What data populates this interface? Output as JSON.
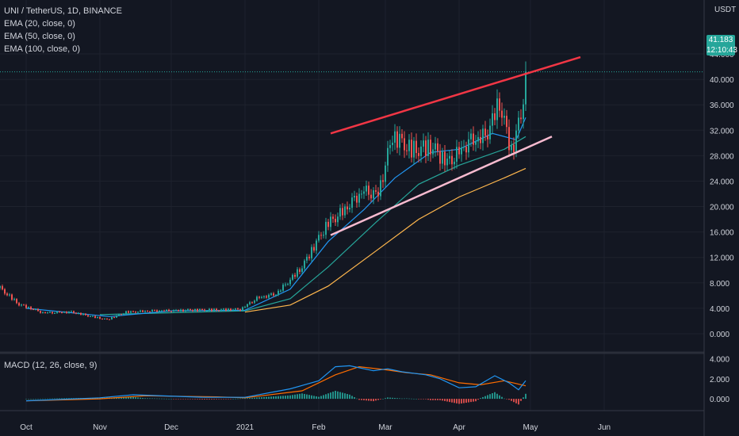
{
  "header": {
    "symbol_line": "UNI / TetherUS, 1D, BINANCE",
    "indicators": [
      "EMA (20, close, 0)",
      "EMA (50, close, 0)",
      "EMA (100, close, 0)"
    ],
    "macd_label": "MACD (12, 26, close, 9)"
  },
  "price_scale": {
    "currency": "USDT",
    "ticks": [
      "44.000",
      "40.000",
      "36.000",
      "32.000",
      "28.000",
      "24.000",
      "20.000",
      "16.000",
      "12.000",
      "8.000",
      "4.000",
      "0.000"
    ],
    "tick_values": [
      44,
      40,
      36,
      32,
      28,
      24,
      20,
      16,
      12,
      8,
      4,
      0
    ]
  },
  "last_price": {
    "value": "41.183",
    "countdown": "12:10:43"
  },
  "macd_scale": {
    "ticks": [
      "4.000",
      "2.000",
      "0.000"
    ],
    "tick_values": [
      4,
      2,
      0
    ]
  },
  "time_axis": {
    "labels": [
      "Oct",
      "Nov",
      "Dec",
      "2021",
      "Feb",
      "Mar",
      "Apr",
      "May",
      "Jun"
    ]
  },
  "colors": {
    "up": "#26a69a",
    "down": "#ef5350",
    "ema20": "#2196f3",
    "ema50": "#26a69a",
    "ema100": "#ffb74d",
    "macd": "#2196f3",
    "signal": "#ff6d00",
    "upper_line": "#f23645",
    "lower_line": "#f8bbd0"
  },
  "chart_data": {
    "type": "candlestick",
    "symbol": "UNI / TetherUS",
    "interval": "1D",
    "ylim": [
      -3,
      45
    ],
    "price_anchors": [
      [
        "2020-09-20",
        7.2
      ],
      [
        "2020-09-28",
        4.6
      ],
      [
        "2020-10-08",
        3.3
      ],
      [
        "2020-10-20",
        3.4
      ],
      [
        "2020-11-04",
        2.2
      ],
      [
        "2020-11-12",
        3.4
      ],
      [
        "2020-11-25",
        3.6
      ],
      [
        "2020-12-10",
        3.7
      ],
      [
        "2020-12-30",
        3.8
      ],
      [
        "2021-01-06",
        5.6
      ],
      [
        "2021-01-14",
        6.2
      ],
      [
        "2021-01-25",
        10.5
      ],
      [
        "2021-02-05",
        17.5
      ],
      [
        "2021-02-12",
        19.5
      ],
      [
        "2021-02-20",
        22.5
      ],
      [
        "2021-02-26",
        22.0
      ],
      [
        "2021-03-04",
        31.0
      ],
      [
        "2021-03-12",
        29.0
      ],
      [
        "2021-03-20",
        29.3
      ],
      [
        "2021-03-27",
        27.0
      ],
      [
        "2021-04-05",
        30.0
      ],
      [
        "2021-04-12",
        31.0
      ],
      [
        "2021-04-18",
        36.5
      ],
      [
        "2021-04-23",
        28.5
      ],
      [
        "2021-04-27",
        34.0
      ],
      [
        "2021-04-29",
        41.183
      ]
    ],
    "ema20_anchors": [
      [
        "2020-10-01",
        4.0
      ],
      [
        "2020-11-05",
        2.7
      ],
      [
        "2020-12-01",
        3.6
      ],
      [
        "2021-01-01",
        3.7
      ],
      [
        "2021-01-20",
        7.0
      ],
      [
        "2021-02-05",
        14.5
      ],
      [
        "2021-02-20",
        19.5
      ],
      [
        "2021-03-05",
        24.5
      ],
      [
        "2021-03-20",
        28.5
      ],
      [
        "2021-04-01",
        29.0
      ],
      [
        "2021-04-15",
        31.5
      ],
      [
        "2021-04-25",
        30.5
      ],
      [
        "2021-04-29",
        34.0
      ]
    ],
    "ema50_anchors": [
      [
        "2020-11-01",
        3.0
      ],
      [
        "2020-12-01",
        3.3
      ],
      [
        "2021-01-01",
        3.6
      ],
      [
        "2021-01-20",
        5.5
      ],
      [
        "2021-02-05",
        10.5
      ],
      [
        "2021-02-25",
        17.5
      ],
      [
        "2021-03-15",
        23.5
      ],
      [
        "2021-04-01",
        26.5
      ],
      [
        "2021-04-20",
        29.0
      ],
      [
        "2021-04-29",
        31.0
      ]
    ],
    "ema100_anchors": [
      [
        "2021-01-01",
        3.4
      ],
      [
        "2021-01-20",
        4.5
      ],
      [
        "2021-02-05",
        7.5
      ],
      [
        "2021-02-25",
        13.0
      ],
      [
        "2021-03-15",
        18.0
      ],
      [
        "2021-04-01",
        21.5
      ],
      [
        "2021-04-20",
        24.5
      ],
      [
        "2021-04-29",
        26.0
      ]
    ],
    "trendlines": [
      {
        "name": "upper",
        "from": [
          "2021-02-06",
          31.5
        ],
        "to": [
          "2021-05-22",
          43.5
        ]
      },
      {
        "name": "lower",
        "from": [
          "2021-02-06",
          15.5
        ],
        "to": [
          "2021-05-10",
          31.0
        ]
      }
    ],
    "macd": {
      "ylim": [
        -1.1,
        4.2
      ],
      "macd_anchors": [
        [
          "2020-10-01",
          -0.2
        ],
        [
          "2020-11-01",
          0.1
        ],
        [
          "2020-11-15",
          0.4
        ],
        [
          "2020-12-15",
          0.15
        ],
        [
          "2021-01-01",
          0.15
        ],
        [
          "2021-01-20",
          1.0
        ],
        [
          "2021-02-01",
          1.8
        ],
        [
          "2021-02-08",
          3.2
        ],
        [
          "2021-02-14",
          3.3
        ],
        [
          "2021-02-24",
          2.8
        ],
        [
          "2021-03-02",
          3.0
        ],
        [
          "2021-03-08",
          2.7
        ],
        [
          "2021-03-18",
          2.4
        ],
        [
          "2021-03-24",
          2.0
        ],
        [
          "2021-04-01",
          1.1
        ],
        [
          "2021-04-08",
          1.2
        ],
        [
          "2021-04-16",
          2.3
        ],
        [
          "2021-04-22",
          1.6
        ],
        [
          "2021-04-26",
          0.9
        ],
        [
          "2021-04-29",
          1.8
        ]
      ],
      "signal_anchors": [
        [
          "2020-10-01",
          -0.2
        ],
        [
          "2020-11-01",
          0.0
        ],
        [
          "2020-11-20",
          0.3
        ],
        [
          "2020-12-20",
          0.2
        ],
        [
          "2021-01-01",
          0.1
        ],
        [
          "2021-01-25",
          0.8
        ],
        [
          "2021-02-08",
          2.4
        ],
        [
          "2021-02-18",
          3.2
        ],
        [
          "2021-03-01",
          2.9
        ],
        [
          "2021-03-10",
          2.6
        ],
        [
          "2021-03-20",
          2.4
        ],
        [
          "2021-04-01",
          1.6
        ],
        [
          "2021-04-10",
          1.4
        ],
        [
          "2021-04-20",
          1.8
        ],
        [
          "2021-04-29",
          1.3
        ]
      ]
    }
  }
}
